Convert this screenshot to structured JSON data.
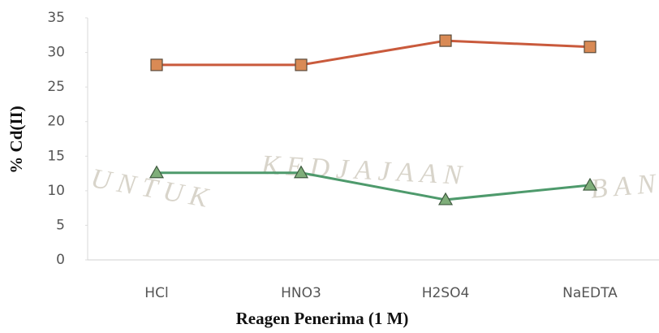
{
  "chart_data": {
    "type": "line",
    "x_label": "Reagen Penerima (1 M)",
    "y_label": "% Cd(II)",
    "categories": [
      "HCl",
      "HNO3",
      "H2SO4",
      "NaEDTA"
    ],
    "series": [
      {
        "color": "#c95a3c",
        "marker": "square",
        "marker_color": "#d98a55",
        "values": [
          28.2,
          28.2,
          31.7,
          30.8
        ]
      },
      {
        "color": "#4e9a6c",
        "marker": "triangle",
        "marker_color": "#7fae7a",
        "values": [
          12.6,
          12.6,
          8.7,
          10.8
        ]
      }
    ],
    "ylim": [
      0,
      35
    ],
    "yticks": [
      0,
      5,
      10,
      15,
      20,
      25,
      30,
      35
    ],
    "grid": false,
    "watermark": [
      "UNTUK",
      "KEDJAJAAN",
      "BAN"
    ]
  }
}
